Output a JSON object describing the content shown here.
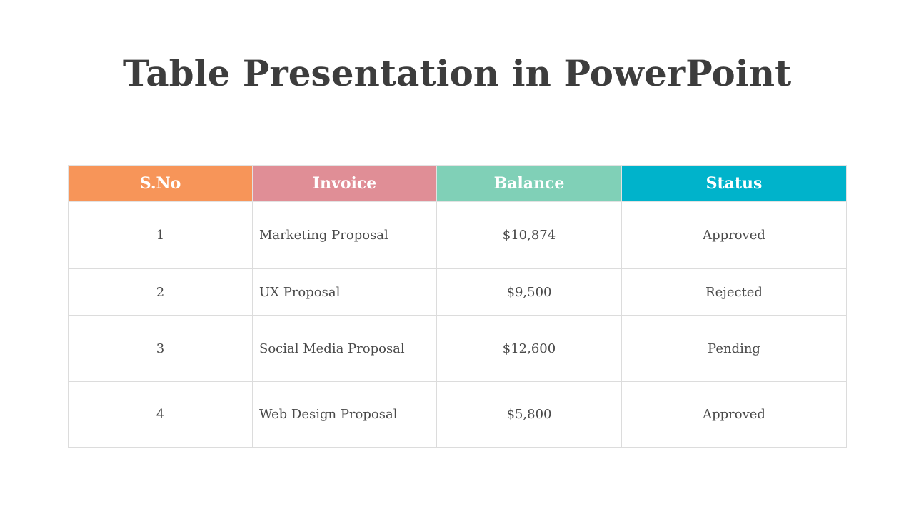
{
  "title": "Table Presentation in PowerPoint",
  "table": {
    "columns": [
      {
        "label": "S.No",
        "color": "#F79559"
      },
      {
        "label": "Invoice",
        "color": "#E08E96"
      },
      {
        "label": "Balance",
        "color": "#80D0B7"
      },
      {
        "label": "Status",
        "color": "#00B3CB"
      }
    ],
    "rows": [
      {
        "sno": "1",
        "invoice": "Marketing Proposal",
        "balance": "$10,874",
        "status": "Approved"
      },
      {
        "sno": "2",
        "invoice": "UX Proposal",
        "balance": "$9,500",
        "status": "Rejected"
      },
      {
        "sno": "3",
        "invoice": "Social Media Proposal",
        "balance": "$12,600",
        "status": "Pending"
      },
      {
        "sno": "4",
        "invoice": "Web Design Proposal",
        "balance": "$5,800",
        "status": "Approved"
      }
    ]
  }
}
